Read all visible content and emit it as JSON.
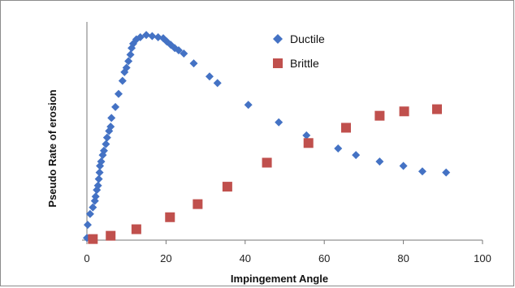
{
  "chart_data": {
    "type": "scatter",
    "title": "",
    "xlabel": "Impingement Angle",
    "ylabel": "Pseudo Rate of erosion",
    "xlim": [
      0,
      100
    ],
    "ylim": [
      0,
      1
    ],
    "x_ticks": [
      "0",
      "20",
      "40",
      "60",
      "80",
      "100"
    ],
    "grid": false,
    "legend_position": "top-right",
    "series": [
      {
        "name": "Ductile",
        "color": "#4472c4",
        "marker": "diamond",
        "points": [
          [
            0.0,
            0.01
          ],
          [
            0.2,
            0.07
          ],
          [
            0.8,
            0.12
          ],
          [
            1.5,
            0.15
          ],
          [
            2.0,
            0.18
          ],
          [
            2.2,
            0.2
          ],
          [
            2.5,
            0.23
          ],
          [
            2.8,
            0.25
          ],
          [
            3.0,
            0.28
          ],
          [
            3.2,
            0.31
          ],
          [
            3.3,
            0.34
          ],
          [
            3.6,
            0.36
          ],
          [
            4.0,
            0.39
          ],
          [
            4.3,
            0.41
          ],
          [
            4.8,
            0.44
          ],
          [
            5.1,
            0.47
          ],
          [
            5.6,
            0.5
          ],
          [
            6.0,
            0.52
          ],
          [
            6.2,
            0.56
          ],
          [
            7.2,
            0.61
          ],
          [
            8.0,
            0.67
          ],
          [
            9.0,
            0.73
          ],
          [
            9.5,
            0.77
          ],
          [
            10.0,
            0.79
          ],
          [
            10.5,
            0.82
          ],
          [
            11.0,
            0.85
          ],
          [
            11.3,
            0.88
          ],
          [
            11.7,
            0.9
          ],
          [
            12.5,
            0.92
          ],
          [
            13.5,
            0.93
          ],
          [
            15.0,
            0.94
          ],
          [
            16.5,
            0.935
          ],
          [
            18.0,
            0.93
          ],
          [
            19.3,
            0.925
          ],
          [
            20.2,
            0.91
          ],
          [
            21.2,
            0.895
          ],
          [
            22.2,
            0.88
          ],
          [
            23.2,
            0.87
          ],
          [
            24.5,
            0.855
          ],
          [
            27.0,
            0.81
          ],
          [
            31.0,
            0.75
          ],
          [
            33.0,
            0.72
          ],
          [
            40.8,
            0.62
          ],
          [
            48.5,
            0.54
          ],
          [
            55.5,
            0.48
          ],
          [
            63.5,
            0.42
          ],
          [
            68.0,
            0.39
          ],
          [
            74.0,
            0.36
          ],
          [
            80.0,
            0.34
          ],
          [
            84.8,
            0.315
          ],
          [
            90.8,
            0.31
          ]
        ]
      },
      {
        "name": "Brittle",
        "color": "#c0504d",
        "marker": "square",
        "points": [
          [
            1.5,
            0.005
          ],
          [
            6.0,
            0.02
          ],
          [
            12.5,
            0.05
          ],
          [
            21.0,
            0.105
          ],
          [
            28.0,
            0.165
          ],
          [
            35.5,
            0.245
          ],
          [
            45.5,
            0.355
          ],
          [
            56.0,
            0.445
          ],
          [
            65.5,
            0.515
          ],
          [
            74.0,
            0.57
          ],
          [
            80.2,
            0.59
          ],
          [
            88.5,
            0.6
          ]
        ]
      }
    ]
  }
}
